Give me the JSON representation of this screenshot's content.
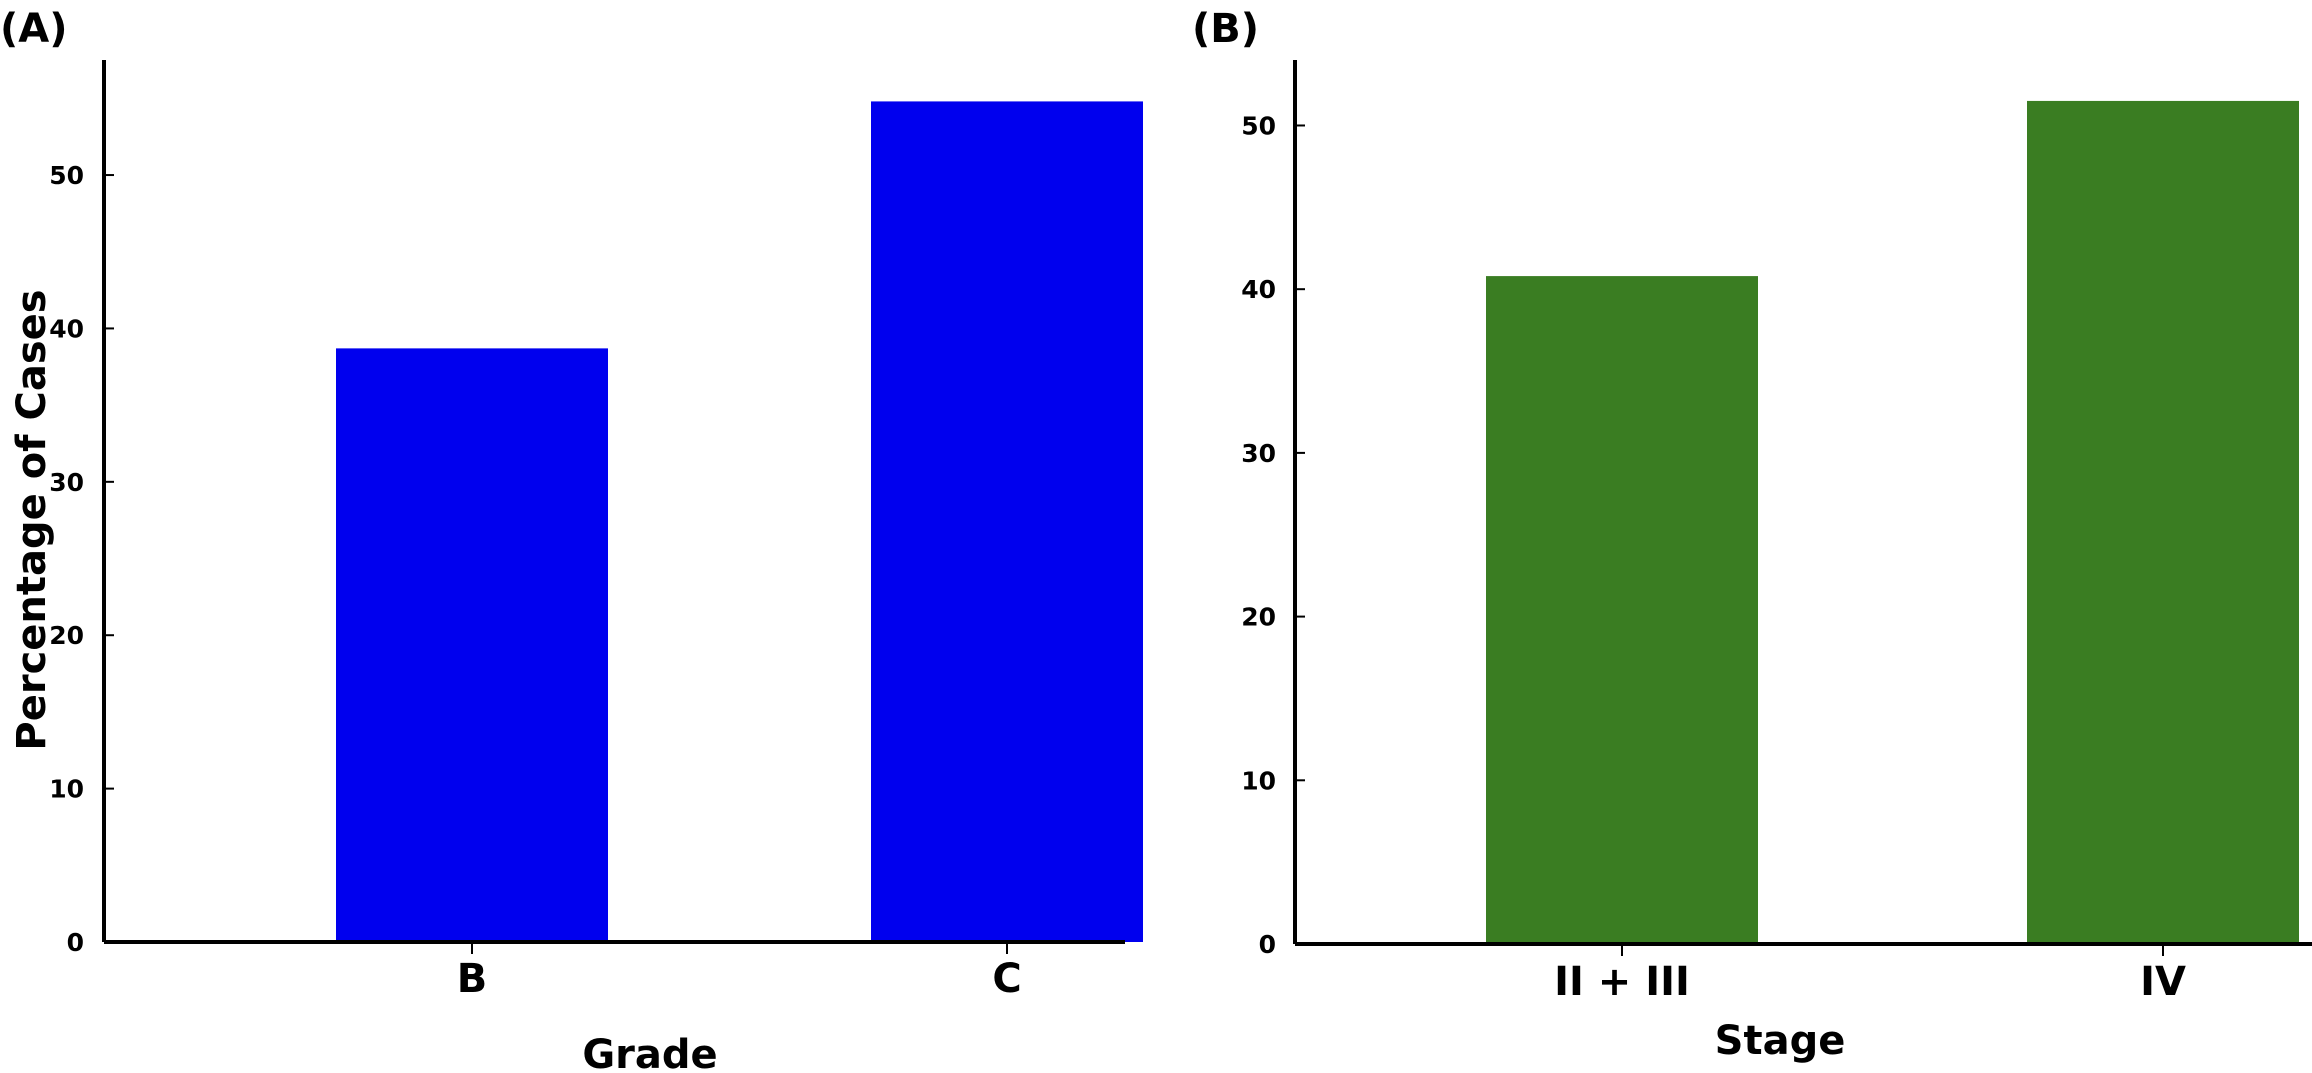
{
  "chart_data": [
    {
      "panel": "(A)",
      "type": "bar",
      "categories": [
        "B",
        "C"
      ],
      "values": [
        38.7,
        54.8
      ],
      "xlabel": "Grade",
      "ylabel": "Percentage of Cases",
      "yticks": [
        "0",
        "10",
        "20",
        "30",
        "40",
        "50"
      ],
      "ylim": [
        0,
        57.5
      ],
      "bar_color": "#0000ee",
      "grid": false
    },
    {
      "panel": "(B)",
      "type": "bar",
      "categories": [
        "II + III",
        "IV"
      ],
      "values": [
        40.8,
        51.5
      ],
      "xlabel": "Stage",
      "ylabel": "",
      "yticks": [
        "0",
        "10",
        "20",
        "30",
        "40",
        "50"
      ],
      "ylim": [
        0,
        54
      ],
      "bar_color": "#3a7d22",
      "grid": false
    }
  ]
}
